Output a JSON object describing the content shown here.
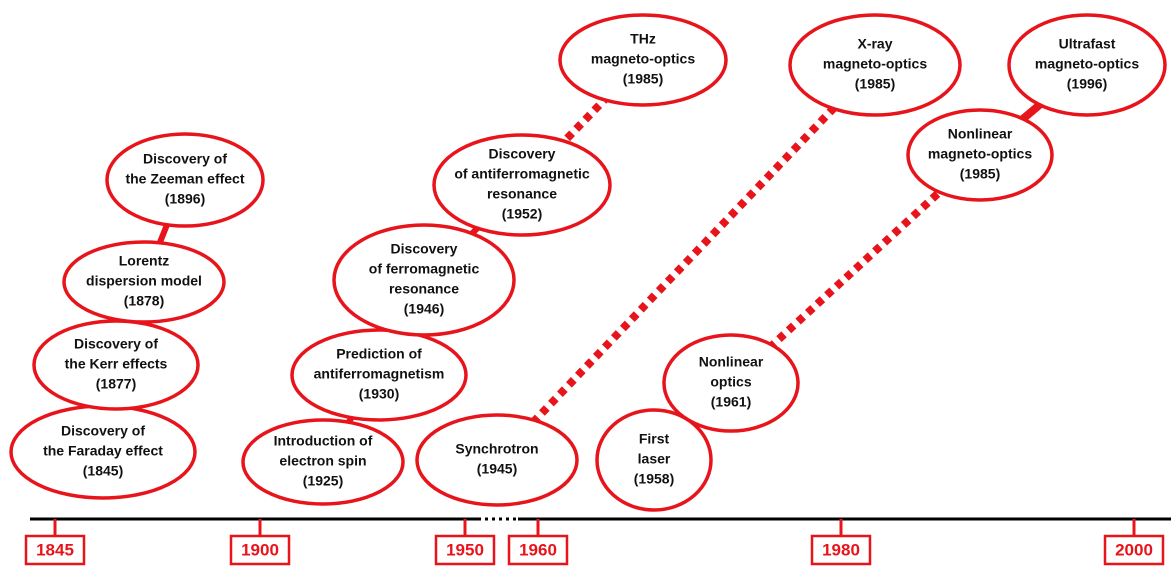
{
  "events": [
    {
      "lines": [
        "Discovery of",
        "the Faraday effect",
        "(1845)"
      ]
    },
    {
      "lines": [
        "Discovery of",
        "the Kerr effects",
        "(1877)"
      ]
    },
    {
      "lines": [
        "Lorentz",
        "dispersion model",
        "(1878)"
      ]
    },
    {
      "lines": [
        "Discovery of",
        "the Zeeman effect",
        "(1896)"
      ]
    },
    {
      "lines": [
        "Introduction of",
        "electron spin",
        "(1925)"
      ]
    },
    {
      "lines": [
        "Prediction of",
        "antiferromagnetism",
        "(1930)"
      ]
    },
    {
      "lines": [
        "Discovery",
        "of ferromagnetic",
        "resonance",
        "(1946)"
      ]
    },
    {
      "lines": [
        "Discovery",
        "of antiferromagnetic",
        "resonance",
        "(1952)"
      ]
    },
    {
      "lines": [
        "THz",
        "magneto-optics",
        "(1985)"
      ]
    },
    {
      "lines": [
        "Synchrotron",
        "(1945)"
      ]
    },
    {
      "lines": [
        "X-ray",
        "magneto-optics",
        "(1985)"
      ]
    },
    {
      "lines": [
        "First",
        "laser",
        "(1958)"
      ]
    },
    {
      "lines": [
        "Nonlinear",
        "optics",
        "(1961)"
      ]
    },
    {
      "lines": [
        "Nonlinear",
        "magneto-optics",
        "(1985)"
      ]
    },
    {
      "lines": [
        "Ultrafast",
        "magneto-optics",
        "(1996)"
      ]
    }
  ],
  "timeline": {
    "labels": [
      "1845",
      "1900",
      "1950",
      "1960",
      "1980",
      "2000"
    ]
  }
}
